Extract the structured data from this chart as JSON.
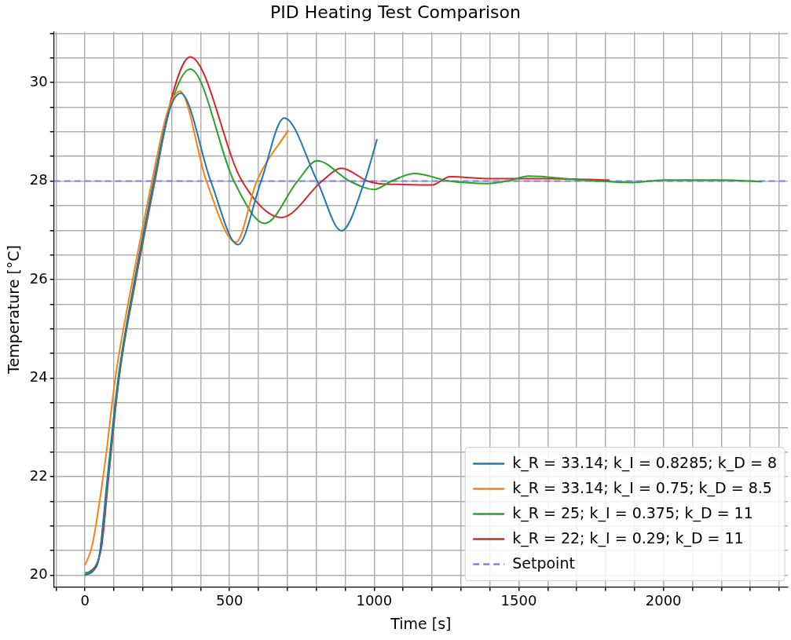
{
  "chart_data": {
    "type": "line",
    "title": "PID Heating Test Comparison",
    "xlabel": "Time [s]",
    "ylabel": "Temperature [°C]",
    "xlim": [
      -107,
      2430
    ],
    "ylim": [
      19.76,
      31.03
    ],
    "xticks": [
      {
        "value": -100,
        "label": null
      },
      0,
      {
        "value": 100,
        "label": null
      },
      {
        "value": 200,
        "label": null
      },
      {
        "value": 300,
        "label": null
      },
      {
        "value": 400,
        "label": null
      },
      500,
      {
        "value": 600,
        "label": null
      },
      {
        "value": 700,
        "label": null
      },
      {
        "value": 800,
        "label": null
      },
      {
        "value": 900,
        "label": null
      },
      1000,
      {
        "value": 1100,
        "label": null
      },
      {
        "value": 1200,
        "label": null
      },
      {
        "value": 1300,
        "label": null
      },
      {
        "value": 1400,
        "label": null
      },
      1500,
      {
        "value": 1600,
        "label": null
      },
      {
        "value": 1700,
        "label": null
      },
      {
        "value": 1800,
        "label": null
      },
      {
        "value": 1900,
        "label": null
      },
      2000,
      {
        "value": 2100,
        "label": null
      },
      {
        "value": 2200,
        "label": null
      },
      {
        "value": 2300,
        "label": null
      },
      {
        "value": 2400,
        "label": null
      }
    ],
    "yticks": [
      20,
      {
        "value": 20.5,
        "label": null
      },
      {
        "value": 21,
        "label": null
      },
      {
        "value": 21.5,
        "label": null
      },
      22,
      {
        "value": 22.5,
        "label": null
      },
      {
        "value": 23,
        "label": null
      },
      {
        "value": 23.5,
        "label": null
      },
      24,
      {
        "value": 24.5,
        "label": null
      },
      {
        "value": 25,
        "label": null
      },
      {
        "value": 25.5,
        "label": null
      },
      26,
      {
        "value": 26.5,
        "label": null
      },
      {
        "value": 27,
        "label": null
      },
      {
        "value": 27.5,
        "label": null
      },
      28,
      {
        "value": 28.5,
        "label": null
      },
      {
        "value": 29,
        "label": null
      },
      {
        "value": 29.5,
        "label": null
      },
      30,
      {
        "value": 30.5,
        "label": null
      },
      {
        "value": 31,
        "label": null
      }
    ],
    "grid": true,
    "legend": "bottom right",
    "marker": "none",
    "line_style": "solid",
    "series": [
      {
        "name": "k_R = 33.14; k_I = 0.8285; k_D = 8",
        "color": "#1f77b4",
        "x": [
          0,
          30,
          50,
          78,
          115,
          172,
          238,
          290,
          331,
          435,
          529,
          609,
          689,
          803,
          887,
          967,
          1010
        ],
        "values": [
          20.0,
          20.1,
          20.4,
          22,
          24,
          26,
          28,
          29.4,
          29.78,
          28,
          26.71,
          28,
          29.28,
          28,
          26.99,
          28,
          28.85
        ]
      },
      {
        "name": "k_R = 33.14; k_I = 0.75; k_D = 8.5",
        "color": "#ff7f0e",
        "x": [
          0,
          25,
          70,
          105,
          165,
          232,
          285,
          328,
          420,
          522,
          594,
          703
        ],
        "values": [
          20.2,
          20.6,
          22.3,
          24,
          26,
          28,
          29.4,
          29.82,
          28,
          26.76,
          28,
          29.03
        ]
      },
      {
        "name": "k_R = 25; k_I = 0.375; k_D = 11",
        "color": "#2ca02c",
        "x": [
          0,
          30,
          50,
          80,
          117,
          174,
          240,
          300,
          364,
          515,
          622,
          735,
          803,
          915,
          1000,
          1060,
          1139,
          1260,
          1393,
          1460,
          1535,
          1700,
          1893,
          2000,
          2200,
          2341
        ],
        "values": [
          20.05,
          20.1,
          20.4,
          22,
          24,
          26,
          28,
          29.6,
          30.27,
          28,
          27.14,
          28,
          28.41,
          28,
          27.83,
          28,
          28.15,
          28,
          27.95,
          28,
          28.1,
          28.03,
          27.97,
          28.02,
          28.02,
          27.99
        ]
      },
      {
        "name": "k_R = 22; k_I = 0.29; k_D = 11",
        "color": "#d62728",
        "x": [
          0,
          55,
          82,
          118,
          176,
          242,
          300,
          364,
          543,
          680,
          820,
          887,
          977,
          1015,
          1100,
          1200,
          1262,
          1400,
          1600,
          1813
        ],
        "values": [
          20.0,
          20.5,
          22,
          24,
          26,
          28,
          29.7,
          30.52,
          28,
          27.26,
          28,
          28.26,
          28,
          27.95,
          27.93,
          27.92,
          28.09,
          28.05,
          28.05,
          28.02
        ]
      }
    ],
    "ref_lines": [
      {
        "axis": "y",
        "value": 28,
        "label": "Setpoint",
        "color": "#8080ff",
        "line_style": "dashed"
      }
    ]
  }
}
